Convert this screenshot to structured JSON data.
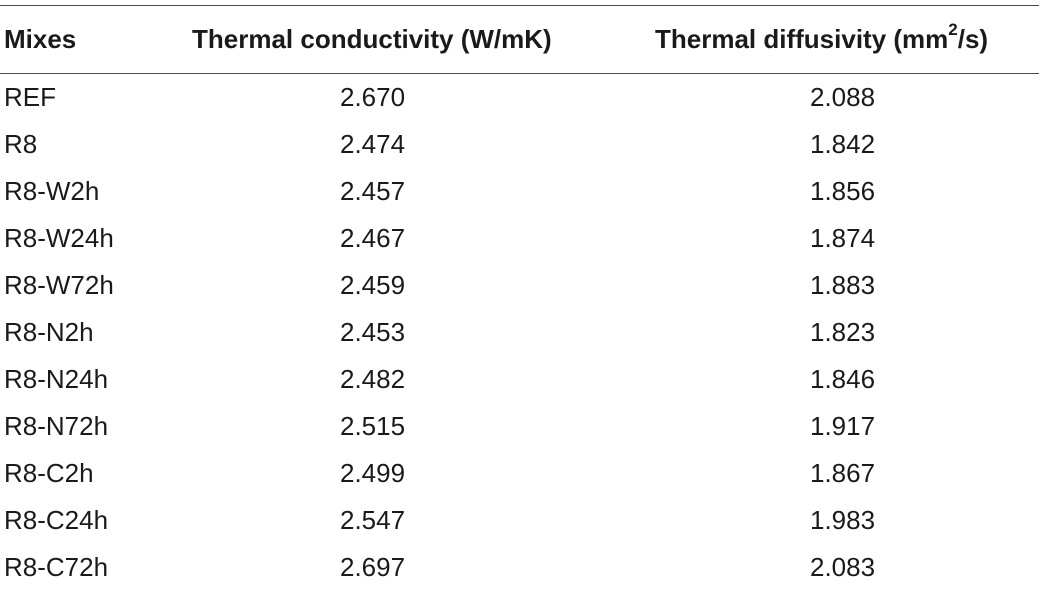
{
  "table": {
    "headers": {
      "mixes": "Mixes",
      "conductivity": "Thermal conductivity (W/mK)",
      "diffusivity_prefix": "Thermal diffusivity (mm",
      "diffusivity_sup": "2",
      "diffusivity_suffix": "/s)"
    },
    "rows": [
      {
        "mix": "REF",
        "conductivity": "2.670",
        "diffusivity": "2.088"
      },
      {
        "mix": "R8",
        "conductivity": "2.474",
        "diffusivity": "1.842"
      },
      {
        "mix": "R8-W2h",
        "conductivity": "2.457",
        "diffusivity": "1.856"
      },
      {
        "mix": "R8-W24h",
        "conductivity": "2.467",
        "diffusivity": "1.874"
      },
      {
        "mix": "R8-W72h",
        "conductivity": "2.459",
        "diffusivity": "1.883"
      },
      {
        "mix": "R8-N2h",
        "conductivity": "2.453",
        "diffusivity": "1.823"
      },
      {
        "mix": "R8-N24h",
        "conductivity": "2.482",
        "diffusivity": "1.846"
      },
      {
        "mix": "R8-N72h",
        "conductivity": "2.515",
        "diffusivity": "1.917"
      },
      {
        "mix": "R8-C2h",
        "conductivity": "2.499",
        "diffusivity": "1.867"
      },
      {
        "mix": "R8-C24h",
        "conductivity": "2.547",
        "diffusivity": "1.983"
      },
      {
        "mix": "R8-C72h",
        "conductivity": "2.697",
        "diffusivity": "2.083"
      }
    ]
  }
}
